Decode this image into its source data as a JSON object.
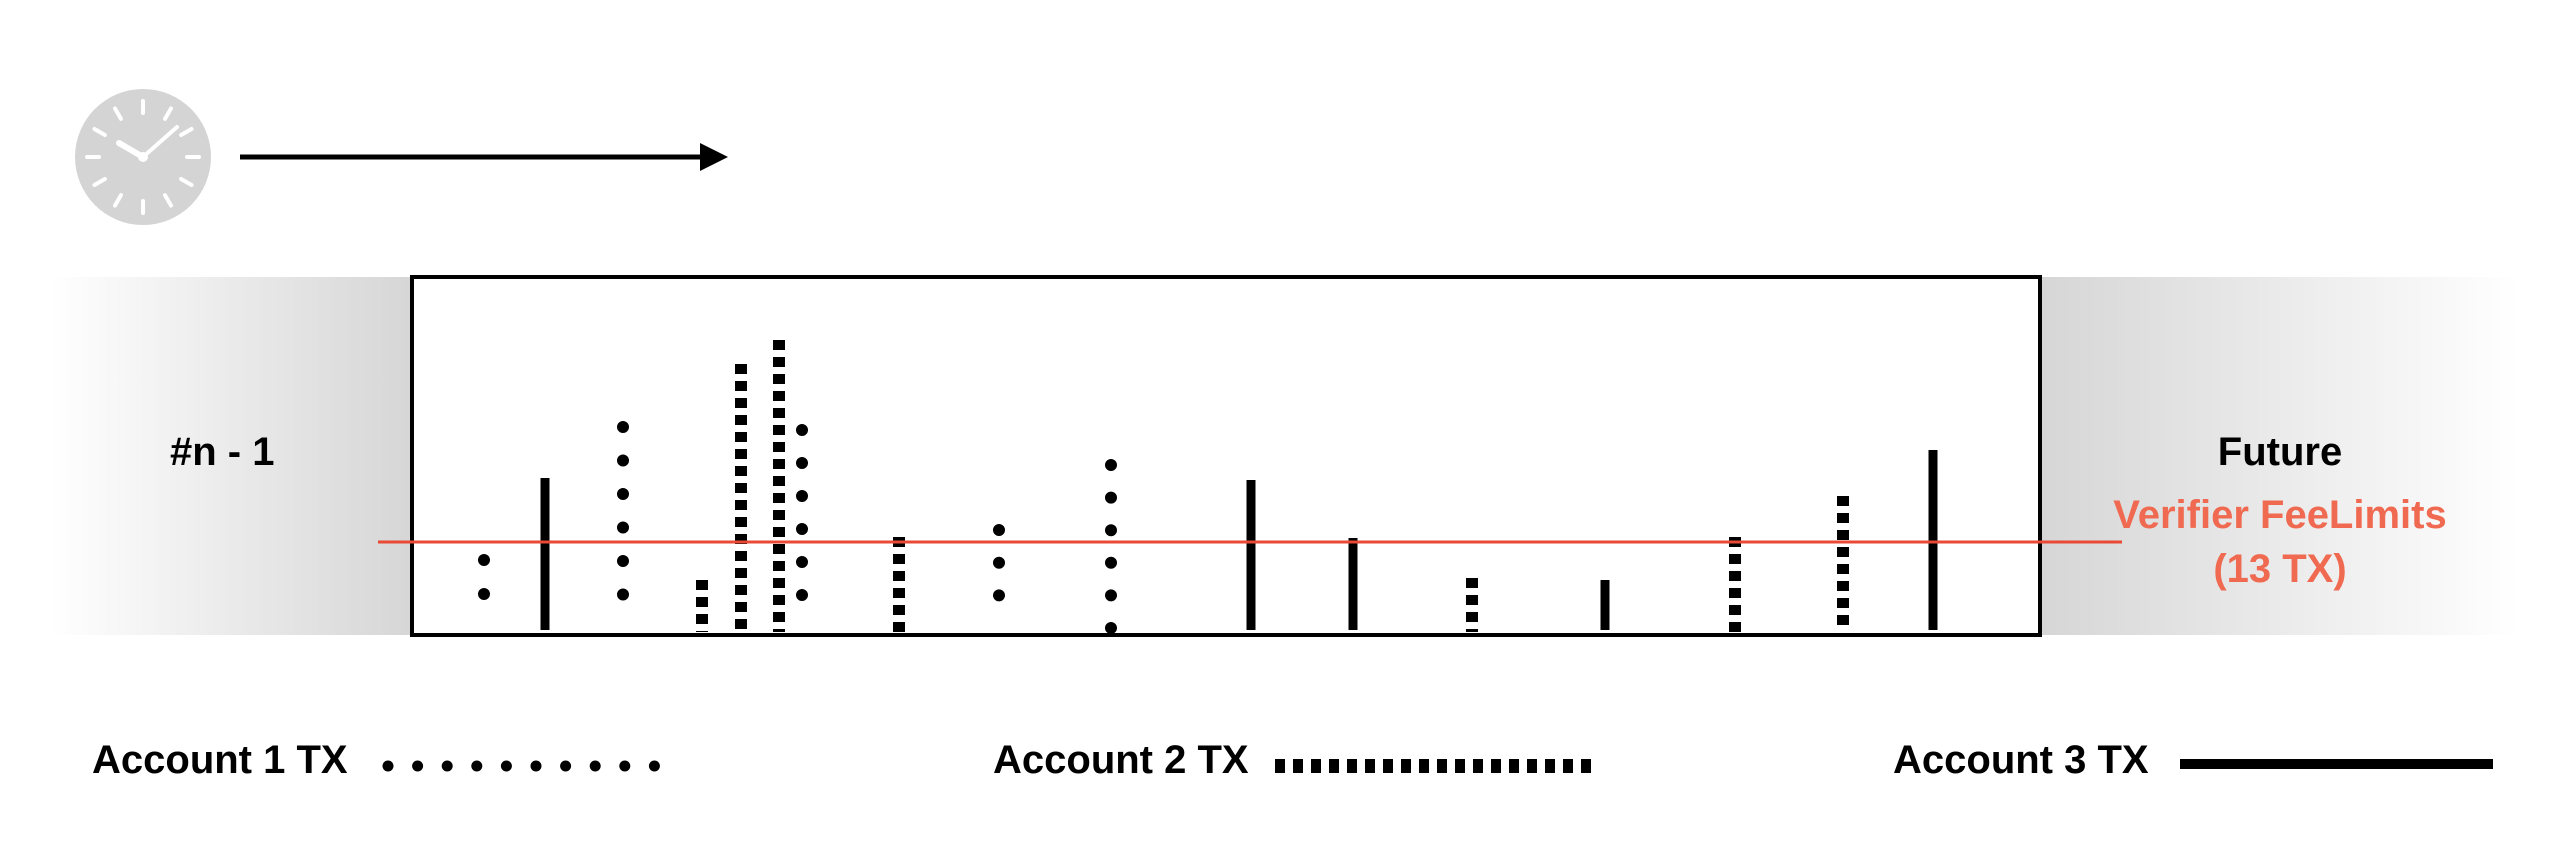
{
  "blocks": {
    "previous_label": "#n - 1",
    "future_label": "Future"
  },
  "limit": {
    "title": "Verifier FeeLimits",
    "subtitle": "(13 TX)",
    "color": "#ef6a50"
  },
  "colors": {
    "clock": "#d4d4d4",
    "shade": "#d6d6d6",
    "ink": "#000000"
  },
  "legend": [
    {
      "label": "Account 1 TX",
      "style": "dotted"
    },
    {
      "label": "Account 2 TX",
      "style": "dashed"
    },
    {
      "label": "Account 3 TX",
      "style": "solid"
    }
  ],
  "icons": {
    "clock": "clock-icon",
    "arrow": "time-arrow-icon"
  }
}
